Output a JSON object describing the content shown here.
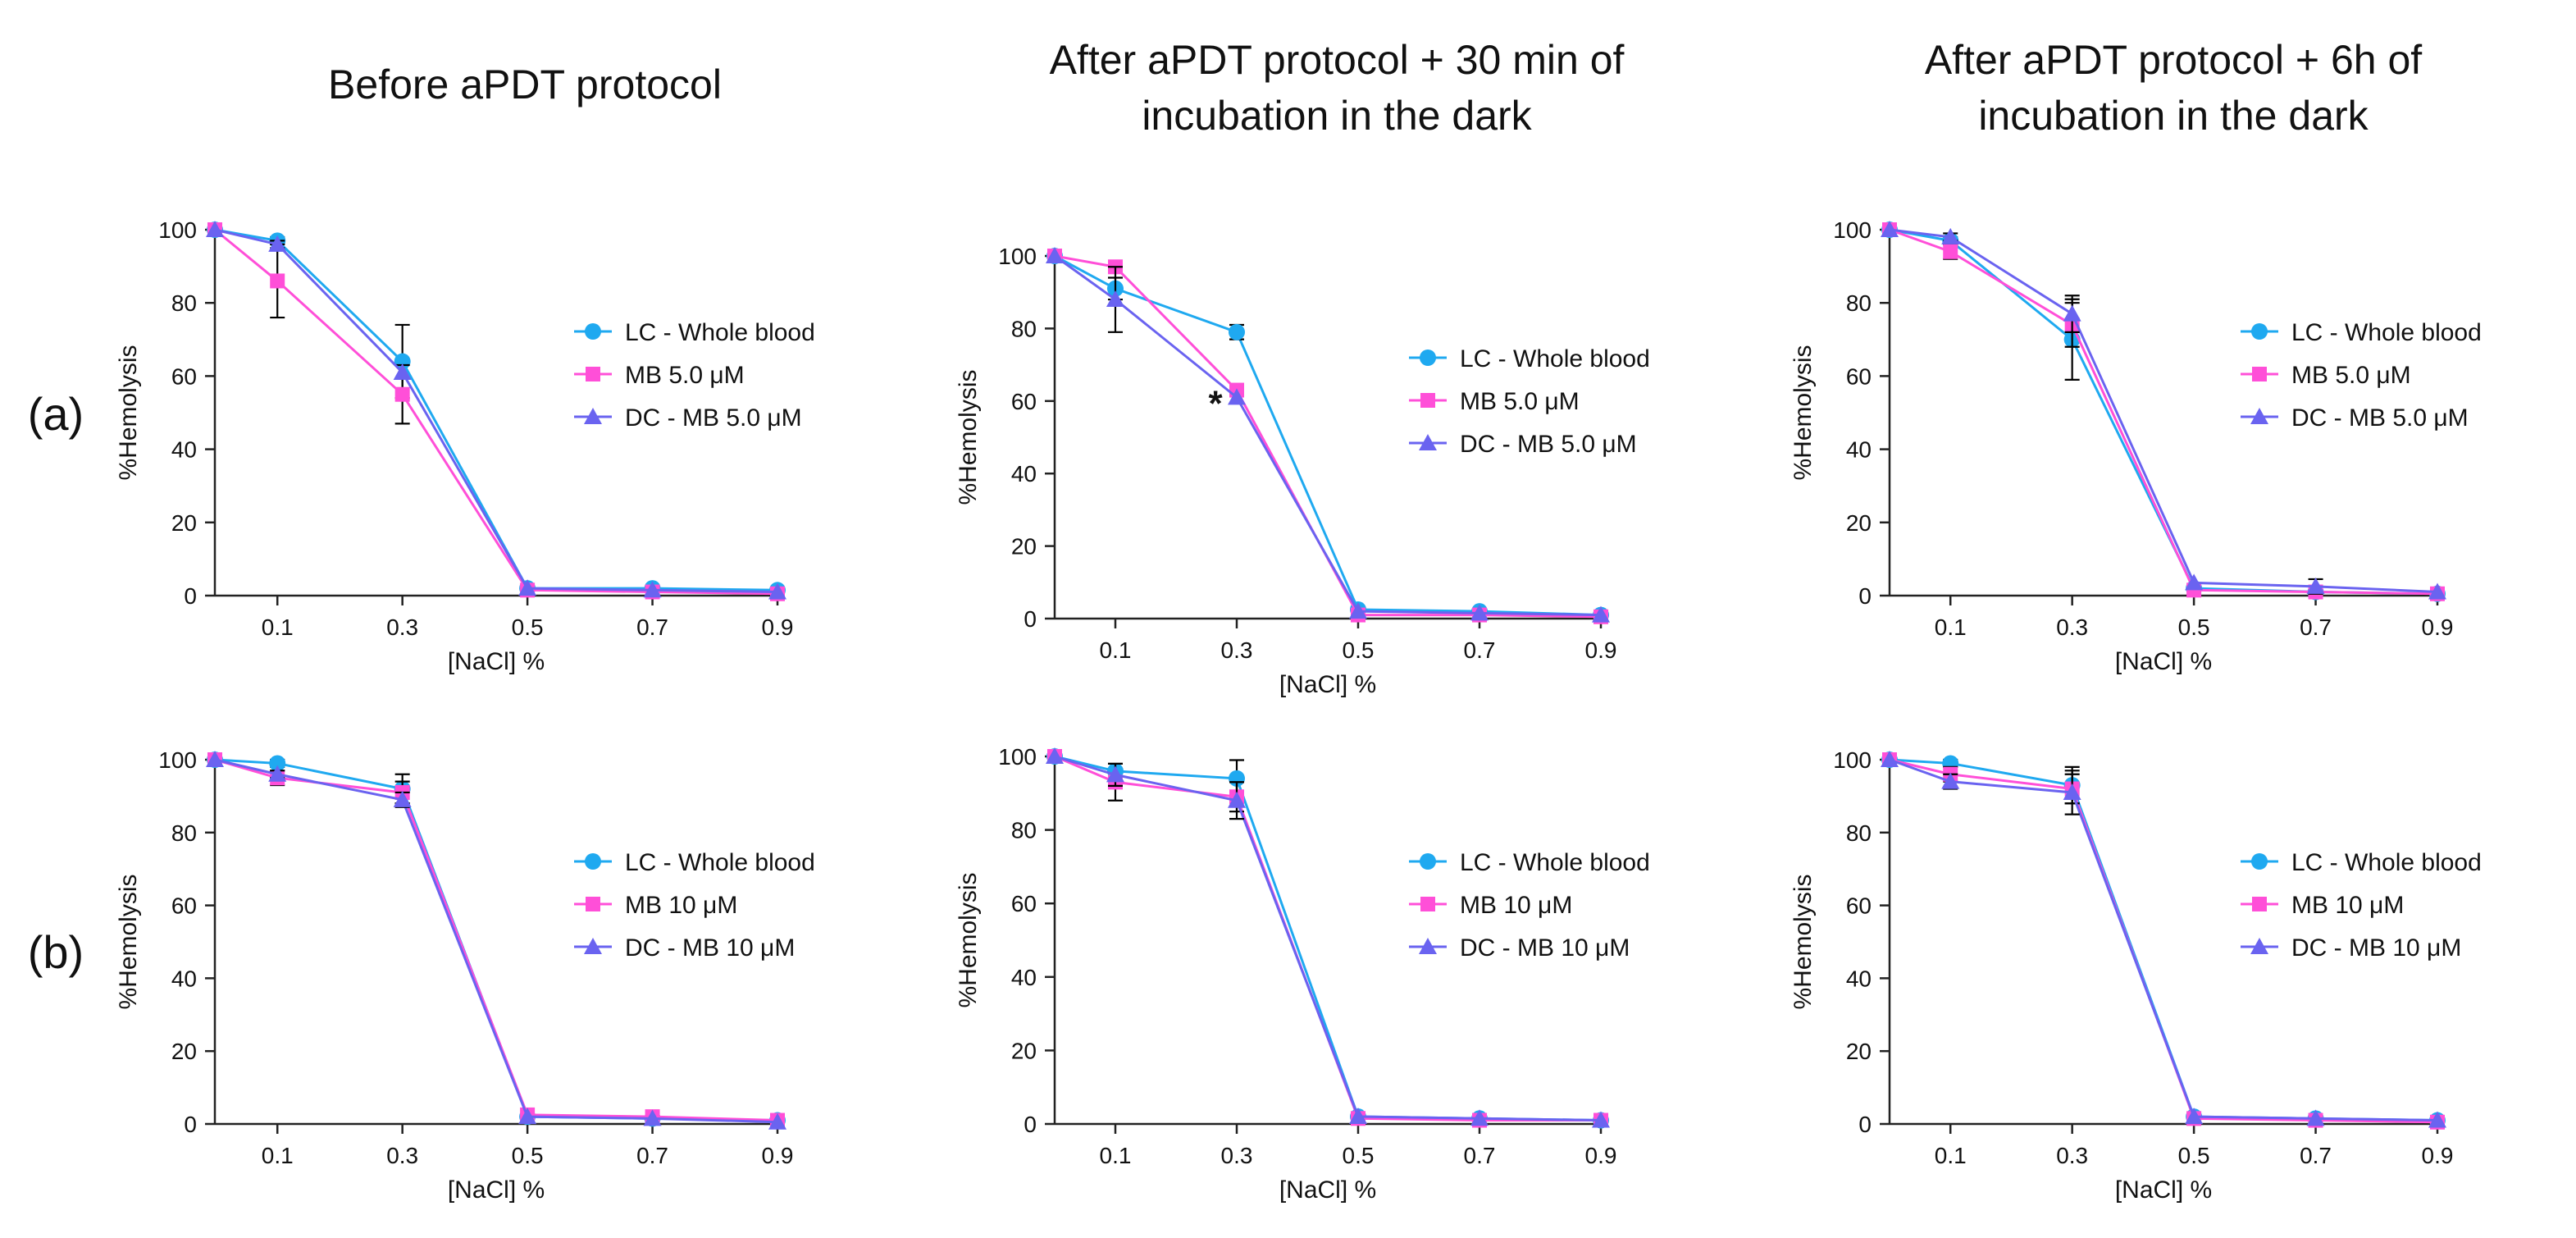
{
  "colors": {
    "lc": "#1fa9f0",
    "mb": "#ff4fd8",
    "dc": "#6a63f0",
    "axis": "#222222",
    "error": "#000000"
  },
  "column_titles": [
    [
      "Before aPDT protocol"
    ],
    [
      "After aPDT protocol + 30 min of",
      "incubation in the dark"
    ],
    [
      "After aPDT protocol + 6h of",
      "incubation in the dark"
    ]
  ],
  "row_labels": [
    "(a)",
    "(b)"
  ],
  "annotations": [
    {
      "panel": 1,
      "x": 0.3,
      "label": "*"
    }
  ],
  "chart_data": [
    {
      "type": "line",
      "row": "a",
      "column": "Before aPDT protocol",
      "xlabel": "[NaCl] %",
      "ylabel": "%Hemolysis",
      "xlim": [
        0,
        0.9
      ],
      "ylim": [
        0,
        100
      ],
      "x": [
        0,
        0.1,
        0.3,
        0.5,
        0.7,
        0.9
      ],
      "xticks": [
        "0.1",
        "0.3",
        "0.5",
        "0.7",
        "0.9"
      ],
      "yticks": [
        "0",
        "20",
        "40",
        "60",
        "80",
        "100"
      ],
      "series": [
        {
          "name": "LC - Whole blood",
          "marker": "circle",
          "values": [
            100,
            97,
            64,
            2,
            2,
            1.5
          ],
          "errors": [
            0,
            1,
            10,
            0,
            0,
            0
          ]
        },
        {
          "name": "MB 5.0 μM",
          "marker": "square",
          "values": [
            100,
            86,
            55,
            1.5,
            1,
            0.5
          ],
          "errors": [
            0,
            10,
            8,
            0,
            0,
            0
          ]
        },
        {
          "name": "DC - MB 5.0 μM",
          "marker": "triangle",
          "values": [
            100,
            96,
            61,
            2,
            1.5,
            1
          ],
          "errors": [
            0,
            1,
            0,
            0,
            0,
            0
          ]
        }
      ]
    },
    {
      "type": "line",
      "row": "a",
      "column": "After aPDT protocol + 30 min of incubation in the dark",
      "xlabel": "[NaCl] %",
      "ylabel": "%Hemolysis",
      "xlim": [
        0,
        0.9
      ],
      "ylim": [
        0,
        100
      ],
      "x": [
        0,
        0.1,
        0.3,
        0.5,
        0.7,
        0.9
      ],
      "xticks": [
        "0.1",
        "0.3",
        "0.5",
        "0.7",
        "0.9"
      ],
      "yticks": [
        "0",
        "20",
        "40",
        "60",
        "80",
        "100"
      ],
      "series": [
        {
          "name": "LC - Whole blood",
          "marker": "circle",
          "values": [
            100,
            91,
            79,
            2.5,
            2,
            1
          ],
          "errors": [
            0,
            3,
            2,
            0,
            0,
            0
          ]
        },
        {
          "name": "MB 5.0 μM",
          "marker": "square",
          "values": [
            100,
            97,
            63,
            1,
            1,
            0.5
          ],
          "errors": [
            0,
            1,
            0,
            0,
            0,
            0
          ]
        },
        {
          "name": "DC - MB 5.0 μM",
          "marker": "triangle",
          "values": [
            100,
            88,
            61,
            2,
            1.5,
            1
          ],
          "errors": [
            0,
            9,
            0,
            0,
            0,
            0
          ]
        }
      ]
    },
    {
      "type": "line",
      "row": "a",
      "column": "After aPDT protocol + 6h of incubation in the dark",
      "xlabel": "[NaCl] %",
      "ylabel": "%Hemolysis",
      "xlim": [
        0,
        0.9
      ],
      "ylim": [
        0,
        100
      ],
      "x": [
        0,
        0.1,
        0.3,
        0.5,
        0.7,
        0.9
      ],
      "xticks": [
        "0.1",
        "0.3",
        "0.5",
        "0.7",
        "0.9"
      ],
      "yticks": [
        "0",
        "20",
        "40",
        "60",
        "80",
        "100"
      ],
      "series": [
        {
          "name": "LC - Whole blood",
          "marker": "circle",
          "values": [
            100,
            97,
            70,
            2,
            1,
            0.5
          ],
          "errors": [
            0,
            1,
            11,
            0,
            0,
            0
          ]
        },
        {
          "name": "MB 5.0 μM",
          "marker": "square",
          "values": [
            100,
            94,
            74,
            1.5,
            1,
            0.5
          ],
          "errors": [
            0,
            2,
            6,
            0,
            0,
            0
          ]
        },
        {
          "name": "DC - MB 5.0 μM",
          "marker": "triangle",
          "values": [
            100,
            98,
            77,
            3.5,
            2.5,
            1
          ],
          "errors": [
            0,
            1,
            5,
            0,
            2,
            0
          ]
        }
      ]
    },
    {
      "type": "line",
      "row": "b",
      "column": "Before aPDT protocol",
      "xlabel": "[NaCl] %",
      "ylabel": "%Hemolysis",
      "xlim": [
        0,
        0.9
      ],
      "ylim": [
        0,
        100
      ],
      "x": [
        0,
        0.1,
        0.3,
        0.5,
        0.7,
        0.9
      ],
      "xticks": [
        "0.1",
        "0.3",
        "0.5",
        "0.7",
        "0.9"
      ],
      "yticks": [
        "0",
        "20",
        "40",
        "60",
        "80",
        "100"
      ],
      "series": [
        {
          "name": "LC - Whole blood",
          "marker": "circle",
          "values": [
            100,
            99,
            92,
            2,
            1.5,
            1
          ],
          "errors": [
            0,
            1,
            4,
            0,
            0,
            0
          ]
        },
        {
          "name": "MB 10 μM",
          "marker": "square",
          "values": [
            100,
            95,
            91,
            2.5,
            2,
            1
          ],
          "errors": [
            0,
            2,
            3,
            0,
            0,
            0
          ]
        },
        {
          "name": "DC - MB 10 μM",
          "marker": "triangle",
          "values": [
            100,
            96,
            89,
            2,
            1.5,
            0.5
          ],
          "errors": [
            0,
            1,
            2,
            0,
            0,
            0
          ]
        }
      ]
    },
    {
      "type": "line",
      "row": "b",
      "column": "After aPDT protocol + 30 min of incubation in the dark",
      "xlabel": "[NaCl] %",
      "ylabel": "%Hemolysis",
      "xlim": [
        0,
        0.9
      ],
      "ylim": [
        0,
        100
      ],
      "x": [
        0,
        0.1,
        0.3,
        0.5,
        0.7,
        0.9
      ],
      "xticks": [
        "0.1",
        "0.3",
        "0.5",
        "0.7",
        "0.9"
      ],
      "yticks": [
        "0",
        "20",
        "40",
        "60",
        "80",
        "100"
      ],
      "series": [
        {
          "name": "LC - Whole blood",
          "marker": "circle",
          "values": [
            100,
            96,
            94,
            2,
            1.5,
            1
          ],
          "errors": [
            0,
            2,
            5,
            0,
            0,
            0
          ]
        },
        {
          "name": "MB 10 μM",
          "marker": "square",
          "values": [
            100,
            93,
            89,
            1.5,
            1,
            1
          ],
          "errors": [
            0,
            5,
            4,
            0,
            0,
            0
          ]
        },
        {
          "name": "DC - MB 10 μM",
          "marker": "triangle",
          "values": [
            100,
            95,
            88,
            2,
            1.5,
            1
          ],
          "errors": [
            0,
            3,
            5,
            0,
            0,
            0
          ]
        }
      ]
    },
    {
      "type": "line",
      "row": "b",
      "column": "After aPDT protocol + 6h of incubation in the dark",
      "xlabel": "[NaCl] %",
      "ylabel": "%Hemolysis",
      "xlim": [
        0,
        0.9
      ],
      "ylim": [
        0,
        100
      ],
      "x": [
        0,
        0.1,
        0.3,
        0.5,
        0.7,
        0.9
      ],
      "xticks": [
        "0.1",
        "0.3",
        "0.5",
        "0.7",
        "0.9"
      ],
      "yticks": [
        "0",
        "20",
        "40",
        "60",
        "80",
        "100"
      ],
      "series": [
        {
          "name": "LC - Whole blood",
          "marker": "circle",
          "values": [
            100,
            99,
            93,
            2,
            1.5,
            1
          ],
          "errors": [
            0,
            1,
            5,
            0,
            0,
            0
          ]
        },
        {
          "name": "MB 10 μM",
          "marker": "square",
          "values": [
            100,
            96,
            92,
            1.5,
            1,
            0.5
          ],
          "errors": [
            0,
            2,
            4,
            0,
            0,
            0
          ]
        },
        {
          "name": "DC - MB 10 μM",
          "marker": "triangle",
          "values": [
            100,
            94,
            91,
            2,
            1.5,
            1
          ],
          "errors": [
            0,
            2,
            6,
            0,
            0,
            0
          ]
        }
      ]
    }
  ]
}
